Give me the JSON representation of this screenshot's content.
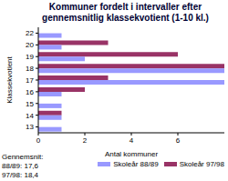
{
  "chart_data": {
    "type": "bar",
    "orientation": "horizontal",
    "title": "Kommuner fordelt i intervaller efter gennemsnitlig klassekvotient (1-10 kl.)",
    "x_label": "Antal kommuner",
    "y_label": "Klassekvotient",
    "categories": [
      "22",
      "20",
      "19",
      "18",
      "17",
      "16",
      "15",
      "14",
      "13"
    ],
    "series": [
      {
        "name": "Skoleår 88/89",
        "color": "#9999ff",
        "values": [
          1,
          1,
          2,
          8,
          8,
          1,
          1,
          1,
          1
        ]
      },
      {
        "name": "Skoleår 97/98",
        "color": "#993366",
        "values": [
          0,
          3,
          6,
          8,
          3,
          2,
          0,
          1,
          0
        ]
      }
    ],
    "xlim": [
      0,
      8
    ],
    "xticks": [
      0,
      2,
      4,
      6
    ],
    "grid": false,
    "legend": "lower right",
    "annotations": [
      "Gennemsnit:",
      "88/89: 17,6",
      "97/98: 18,4"
    ]
  }
}
